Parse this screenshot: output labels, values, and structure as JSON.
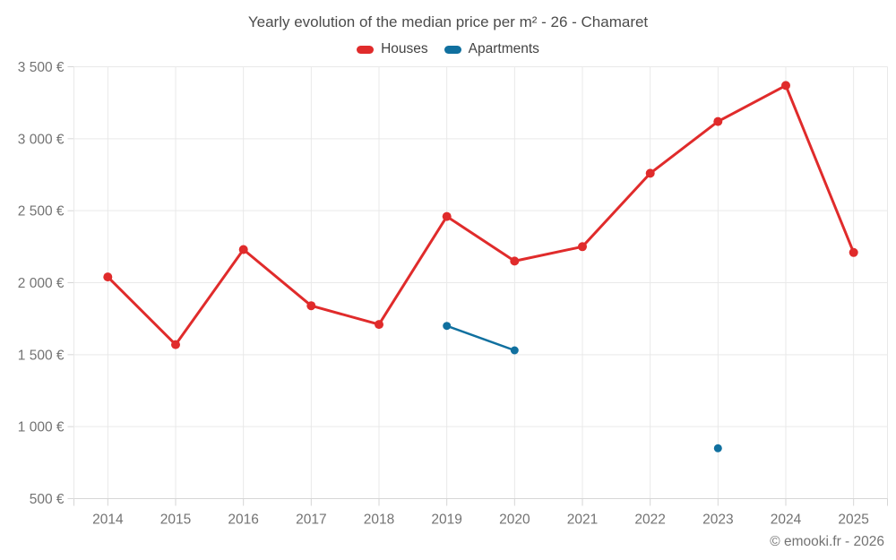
{
  "chart": {
    "title": "Yearly evolution of the median price per m² - 26 - Chamaret",
    "copyright": "© emooki.fr - 2026",
    "legend": [
      {
        "label": "Houses",
        "color": "#e02b2b"
      },
      {
        "label": "Apartments",
        "color": "#10709f"
      }
    ]
  },
  "chart_data": {
    "type": "line",
    "title": "Yearly evolution of the median price per m² - 26 - Chamaret",
    "categories": [
      "2014",
      "2015",
      "2016",
      "2017",
      "2018",
      "2019",
      "2020",
      "2021",
      "2022",
      "2023",
      "2024",
      "2025"
    ],
    "series": [
      {
        "name": "Houses",
        "color": "#e02b2b",
        "marker_radius": 5,
        "line_width": 3,
        "values": [
          2040,
          1570,
          2230,
          1840,
          1710,
          2460,
          2150,
          2250,
          2760,
          3120,
          3370,
          2210
        ]
      },
      {
        "name": "Apartments",
        "color": "#10709f",
        "marker_radius": 4.5,
        "line_width": 2.5,
        "values": [
          null,
          null,
          null,
          null,
          null,
          1700,
          1530,
          null,
          null,
          850,
          null,
          null
        ]
      }
    ],
    "ylim": [
      500,
      3500
    ],
    "yticks": [
      {
        "value": 3500,
        "label": "3 500 €"
      },
      {
        "value": 3000,
        "label": "3 000 €"
      },
      {
        "value": 2500,
        "label": "2 500 €"
      },
      {
        "value": 2000,
        "label": "2 000 €"
      },
      {
        "value": 1500,
        "label": "1 500 €"
      },
      {
        "value": 1000,
        "label": "1 000 €"
      },
      {
        "value": 500,
        "label": "500 €"
      }
    ],
    "ylabel": "",
    "xlabel": "",
    "grid": true,
    "legend_position": "top",
    "colors": {
      "grid_line": "#e9e9e9",
      "axis_line": "#d6d6d6",
      "axis_text": "#737373"
    }
  }
}
